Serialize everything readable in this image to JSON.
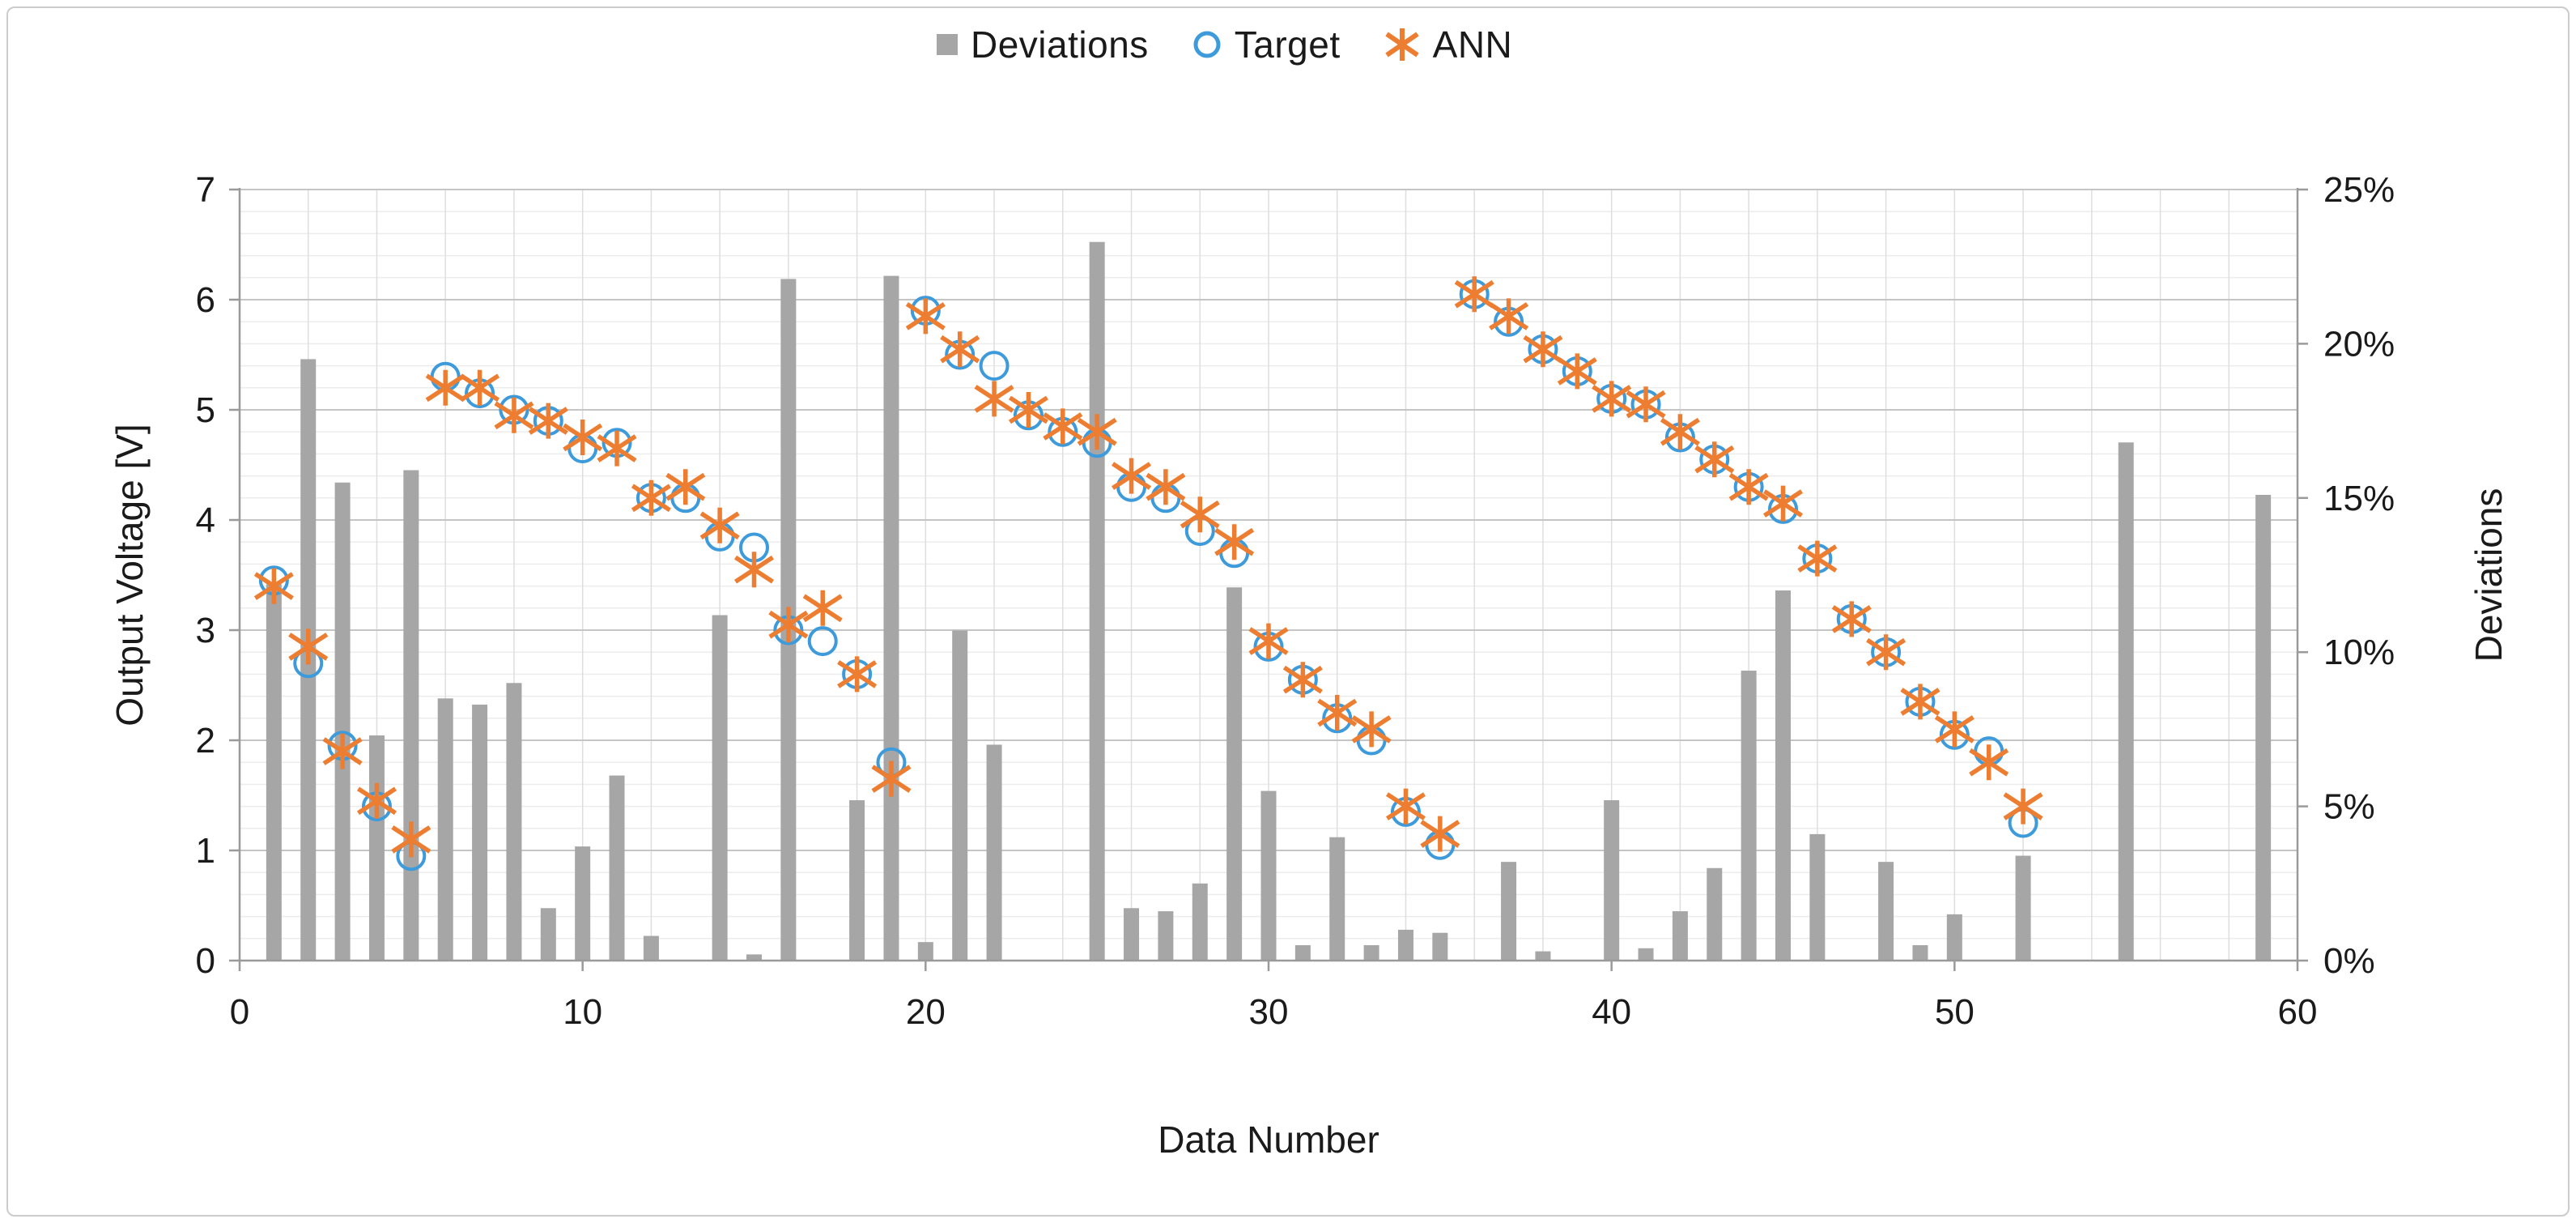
{
  "colors": {
    "bar": "#a6a6a6",
    "target": "#3d9bdc",
    "ann": "#ed7d31",
    "axis_line": "#9a9a9a",
    "grid_major": "#c5c5c5",
    "grid_minor": "#ececec",
    "grid_vertical": "#dedede",
    "text": "#1a1a1a",
    "frame_border": "#cccccc",
    "background": "#ffffff"
  },
  "legend": {
    "items": [
      {
        "label": "Deviations",
        "icon": "gray-square-icon"
      },
      {
        "label": "Target",
        "icon": "blue-circle-outline-icon"
      },
      {
        "label": "ANN",
        "icon": "orange-asterisk-icon"
      }
    ]
  },
  "chart_data": {
    "type": "combo",
    "subtype": "bar + scatter-circle + scatter-asterisk",
    "xlabel": "Data Number",
    "ylabel_left": "Output Voltage [V]",
    "ylabel_right": "Deviations",
    "xlim": [
      0,
      60
    ],
    "ylim_left": [
      0,
      7
    ],
    "ylim_right_percent": [
      0,
      25
    ],
    "x_ticks": [
      0,
      10,
      20,
      30,
      40,
      50,
      60
    ],
    "y_left_ticks": [
      0,
      1,
      2,
      3,
      4,
      5,
      6,
      7
    ],
    "y_right_ticks": [
      "0%",
      "5%",
      "10%",
      "15%",
      "20%",
      "25%"
    ],
    "y_right_tick_values": [
      0,
      5,
      10,
      15,
      20,
      25
    ],
    "grid": {
      "h_major_step_V": 1,
      "h_minor_step_V": 0.2,
      "v_step_units": 2,
      "legend_position": "top-center"
    },
    "x": [
      1,
      2,
      3,
      4,
      5,
      6,
      7,
      8,
      9,
      10,
      11,
      12,
      13,
      14,
      15,
      16,
      17,
      18,
      19,
      20,
      21,
      22,
      23,
      24,
      25,
      26,
      27,
      28,
      29,
      30,
      31,
      32,
      33,
      34,
      35,
      36,
      37,
      38,
      39,
      40,
      41,
      42,
      43,
      44,
      45,
      46,
      47,
      48,
      49,
      50,
      51,
      52,
      53,
      54,
      55,
      56,
      57,
      58,
      59
    ],
    "series": [
      {
        "name": "Deviations",
        "type": "bar",
        "axis": "right",
        "unit": "%",
        "color": "#a6a6a6",
        "values": [
          12.2,
          19.5,
          15.5,
          7.3,
          15.9,
          8.5,
          8.3,
          9.0,
          1.7,
          3.7,
          6.0,
          0.8,
          0,
          11.2,
          0.2,
          22.1,
          0,
          5.2,
          22.2,
          0.6,
          10.7,
          7.0,
          0,
          0,
          23.3,
          1.7,
          1.6,
          2.5,
          12.1,
          5.5,
          0.5,
          4.0,
          0.5,
          1.0,
          0.9,
          0,
          3.2,
          0.3,
          0,
          5.2,
          0.4,
          1.6,
          3.0,
          9.4,
          12.0,
          4.1,
          0,
          3.2,
          0.5,
          1.5,
          0,
          3.4,
          0,
          0,
          16.8,
          0,
          0,
          0,
          15.1
        ]
      },
      {
        "name": "Target",
        "type": "scatter-circle",
        "axis": "left",
        "unit": "V",
        "color": "#3d9bdc",
        "values": [
          3.45,
          2.7,
          1.95,
          1.4,
          0.95,
          5.3,
          5.15,
          5.0,
          4.9,
          4.65,
          4.7,
          4.2,
          4.2,
          3.85,
          3.75,
          3.0,
          2.9,
          2.6,
          1.8,
          5.9,
          5.5,
          5.4,
          4.95,
          4.8,
          4.7,
          4.3,
          4.2,
          3.9,
          3.7,
          2.85,
          2.55,
          2.2,
          2.0,
          1.35,
          1.05,
          6.05,
          5.8,
          5.55,
          5.35,
          5.1,
          5.05,
          4.75,
          4.55,
          4.3,
          4.1,
          3.65,
          3.1,
          2.8,
          2.35,
          2.05,
          1.9,
          1.25,
          null,
          null,
          null,
          null,
          null,
          null,
          null
        ]
      },
      {
        "name": "ANN",
        "type": "scatter-asterisk",
        "axis": "left",
        "unit": "V",
        "color": "#ed7d31",
        "values": [
          3.4,
          2.85,
          1.9,
          1.45,
          1.1,
          5.2,
          5.2,
          4.95,
          4.9,
          4.75,
          4.65,
          4.2,
          4.3,
          3.95,
          3.55,
          3.05,
          3.2,
          2.6,
          1.65,
          5.85,
          5.55,
          5.1,
          5.0,
          4.85,
          4.8,
          4.4,
          4.3,
          4.05,
          3.8,
          2.9,
          2.55,
          2.25,
          2.1,
          1.4,
          1.15,
          6.05,
          5.85,
          5.55,
          5.35,
          5.1,
          5.05,
          4.8,
          4.55,
          4.3,
          4.15,
          3.65,
          3.1,
          2.8,
          2.35,
          2.1,
          1.8,
          1.4,
          null,
          null,
          null,
          null,
          null,
          null,
          null
        ]
      }
    ]
  }
}
